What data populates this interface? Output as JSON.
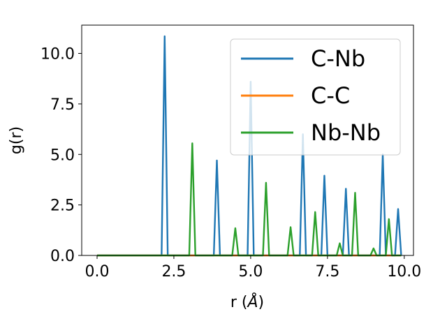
{
  "chart_data": {
    "type": "line",
    "xlabel": "r (",
    "xlabel_symbol": "Å",
    "xlabel_close": ")",
    "ylabel": "g(r)",
    "xlim": [
      -0.5,
      10.3
    ],
    "ylim": [
      0,
      11.4
    ],
    "xticks": [
      0.0,
      2.5,
      5.0,
      7.5,
      10.0
    ],
    "xtick_labels": [
      "0.0",
      "2.5",
      "5.0",
      "7.5",
      "10.0"
    ],
    "yticks": [
      0.0,
      2.5,
      5.0,
      7.5,
      10.0
    ],
    "ytick_labels": [
      "0.0",
      "2.5",
      "5.0",
      "7.5",
      "10.0"
    ],
    "grid": false,
    "legend_position": "upper-right",
    "series": [
      {
        "name": "C-Nb",
        "color": "#1f77b4",
        "peaks": [
          {
            "r": 2.2,
            "g": 10.85
          },
          {
            "r": 3.9,
            "g": 4.7
          },
          {
            "r": 5.0,
            "g": 8.6
          },
          {
            "r": 6.7,
            "g": 6.0
          },
          {
            "r": 7.4,
            "g": 3.95
          },
          {
            "r": 8.1,
            "g": 3.3
          },
          {
            "r": 9.3,
            "g": 5.0
          },
          {
            "r": 9.8,
            "g": 2.3
          }
        ]
      },
      {
        "name": "C-C",
        "color": "#ff7f0e",
        "peaks": []
      },
      {
        "name": "Nb-Nb",
        "color": "#2ca02c",
        "peaks": [
          {
            "r": 3.1,
            "g": 5.55
          },
          {
            "r": 4.5,
            "g": 1.35
          },
          {
            "r": 5.5,
            "g": 3.6
          },
          {
            "r": 6.3,
            "g": 1.4
          },
          {
            "r": 7.1,
            "g": 2.15
          },
          {
            "r": 7.9,
            "g": 0.6
          },
          {
            "r": 8.4,
            "g": 3.1
          },
          {
            "r": 9.0,
            "g": 0.35
          },
          {
            "r": 9.5,
            "g": 1.8
          }
        ]
      }
    ],
    "x_start": 0.0,
    "x_end": 9.9
  }
}
